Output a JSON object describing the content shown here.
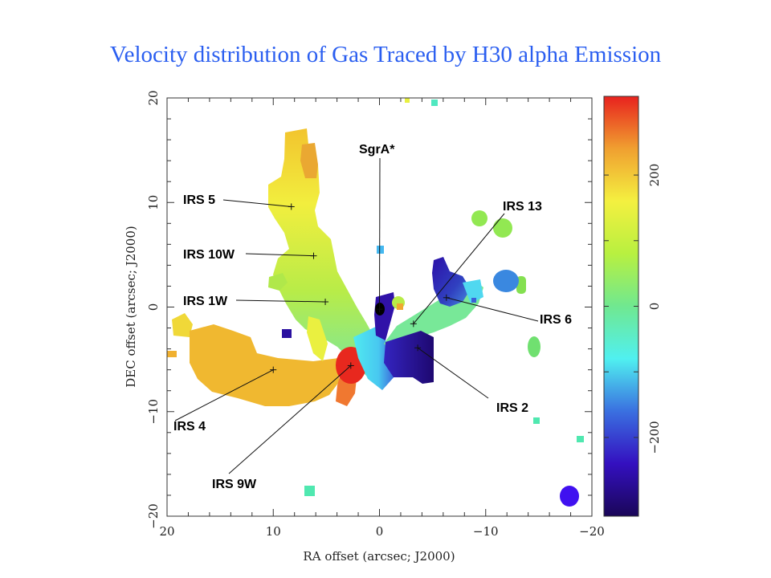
{
  "title": "Velocity distribution of Gas Traced by H30 alpha Emission",
  "chart_data": {
    "type": "heatmap",
    "title": "Velocity distribution of Gas Traced by H30 alpha Emission",
    "xlabel": "RA offset (arcsec; J2000)",
    "ylabel": "DEC offset (arcsec; J2000)",
    "xlim": [
      20,
      -20
    ],
    "ylim": [
      -20,
      20
    ],
    "xticks": [
      20,
      10,
      0,
      -10,
      -20
    ],
    "yticks": [
      20,
      10,
      0,
      -10,
      -20
    ],
    "xtick_labels": [
      "20",
      "10",
      "0",
      "−10",
      "−20"
    ],
    "ytick_labels": [
      "20",
      "10",
      "0",
      "−10",
      "−20"
    ],
    "colorbar": {
      "range": [
        -320,
        320
      ],
      "ticks": [
        200,
        0,
        -200
      ],
      "tick_labels": [
        "200",
        "0",
        "−200"
      ],
      "minor_ticks": [
        100,
        -100
      ],
      "colors": [
        "#1a0658",
        "#3410c0",
        "#3a70e0",
        "#50f0f0",
        "#70e890",
        "#b8f040",
        "#f4f040",
        "#f0a030",
        "#e8221e"
      ]
    },
    "annotations": [
      {
        "label": "IRS 5",
        "ra": 8.3,
        "dec": 9.6
      },
      {
        "label": "IRS 10W",
        "ra": 6.2,
        "dec": 4.9
      },
      {
        "label": "IRS 1W",
        "ra": 5.1,
        "dec": 0.5
      },
      {
        "label": "SgrA*",
        "ra": 0.0,
        "dec": -0.2
      },
      {
        "label": "IRS 13",
        "ra": -3.2,
        "dec": -1.6
      },
      {
        "label": "IRS 6",
        "ra": -6.3,
        "dec": 0.9
      },
      {
        "label": "IRS 2",
        "ra": -3.6,
        "dec": -3.9
      },
      {
        "label": "IRS 4",
        "ra": 10.0,
        "dec": -6.0
      },
      {
        "label": "IRS 9W",
        "ra": 2.7,
        "dec": -5.6
      }
    ]
  }
}
